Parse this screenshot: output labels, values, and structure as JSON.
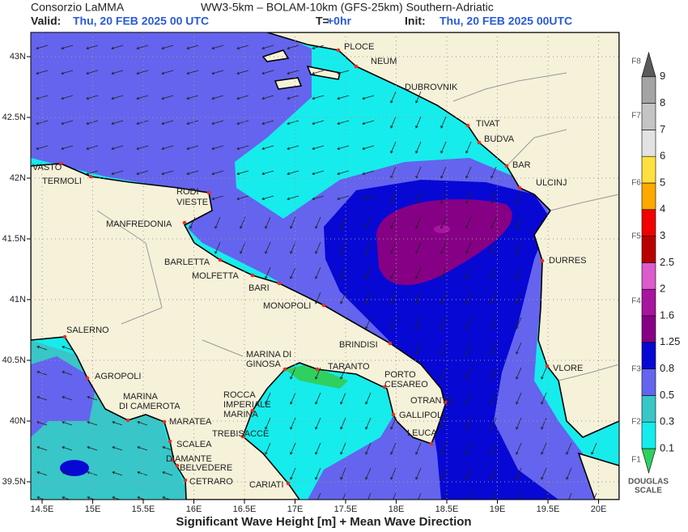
{
  "header": {
    "org": "Consorzio LaMMA",
    "model": "WW3-5km – BOLAM-10km (GFS-25km)  Southern-Adriatic",
    "valid_label": "Valid:",
    "valid": "Thu, 20 FEB 2025  00 UTC",
    "t_label": "T=",
    "t": "+0hr",
    "init_label": "Init:",
    "init": "Thu, 20 FEB 2025 00UTC"
  },
  "map": {
    "lat_ticks": [
      {
        "value": 43,
        "label": "43N"
      },
      {
        "value": 42.5,
        "label": "42.5N"
      },
      {
        "value": 42,
        "label": "42N"
      },
      {
        "value": 41.5,
        "label": "41.5N"
      },
      {
        "value": 41,
        "label": "41N"
      },
      {
        "value": 40.5,
        "label": "40.5N"
      },
      {
        "value": 40,
        "label": "40N"
      },
      {
        "value": 39.5,
        "label": "39.5N"
      }
    ],
    "lon_ticks": [
      {
        "value": 14.5,
        "label": "14.5E"
      },
      {
        "value": 15,
        "label": "15E"
      },
      {
        "value": 15.5,
        "label": "15.5E"
      },
      {
        "value": 16,
        "label": "16E"
      },
      {
        "value": 16.5,
        "label": "16.5E"
      },
      {
        "value": 17,
        "label": "17E"
      },
      {
        "value": 17.5,
        "label": "17.5E"
      },
      {
        "value": 18,
        "label": "18E"
      },
      {
        "value": 18.5,
        "label": "18.5E"
      },
      {
        "value": 19,
        "label": "19E"
      },
      {
        "value": 19.5,
        "label": "19.5E"
      },
      {
        "value": 20,
        "label": "20E"
      }
    ],
    "places": [
      [
        "PLOCE"
      ],
      [
        "NEUM"
      ],
      [
        "DUBROVNIK"
      ],
      [
        "TIVAT"
      ],
      [
        "BUDVA"
      ],
      [
        "BAR"
      ],
      [
        "ULCINJ"
      ],
      [
        "VASTO"
      ],
      [
        "TERMOLI"
      ],
      [
        "RODI"
      ],
      [
        "VIESTE"
      ],
      [
        "MANFREDONIA"
      ],
      [
        "BARLETTA"
      ],
      [
        "MOLFETTA"
      ],
      [
        "BARI"
      ],
      [
        "MONOPOLI"
      ],
      [
        "DURRES"
      ],
      [
        "BRINDISI"
      ],
      [
        "SALERNO"
      ],
      [
        "MARINA DI",
        "GINOSA"
      ],
      [
        "TARANTO"
      ],
      [
        "VLORE"
      ],
      [
        "AGROPOLI"
      ],
      [
        "PORTO",
        "CESAREO"
      ],
      [
        "ROCCA",
        "IMPERIALE",
        "MARINA"
      ],
      [
        "MARINA",
        "DI CAMEROTA"
      ],
      [
        "OTRANTO"
      ],
      [
        "GALLIPOLI"
      ],
      [
        "MARATEA"
      ],
      [
        "TREBISACCE"
      ],
      [
        "LEUCA"
      ],
      [
        "SCALEA"
      ],
      [
        "DIAMANTE"
      ],
      [
        "BELVEDERE"
      ],
      [
        "CETRARO"
      ],
      [
        "CARIATI"
      ]
    ]
  },
  "legend": {
    "levels": [
      0.1,
      0.3,
      0.5,
      0.8,
      1.25,
      1.6,
      2,
      2.5,
      3,
      4,
      5,
      6,
      7,
      8,
      9
    ],
    "colors": [
      "#2ed060",
      "#16ecec",
      "#38c6c8",
      "#6464ee",
      "#0808d4",
      "#860086",
      "#a8149e",
      "#dc5ccc",
      "#b80000",
      "#f00000",
      "#ffa800",
      "#ffe040",
      "#e2e2e2",
      "#c4c4c4",
      "#a4a4a4",
      "#5a5a5a"
    ],
    "douglas": [
      "F1",
      "F2",
      "F3",
      "F4",
      "F5",
      "F6",
      "F7",
      "F8"
    ],
    "douglas_title": [
      "DOUGLAS",
      "SCALE"
    ]
  },
  "footer": "Significant Wave Height [m] + Mean Wave Direction"
}
